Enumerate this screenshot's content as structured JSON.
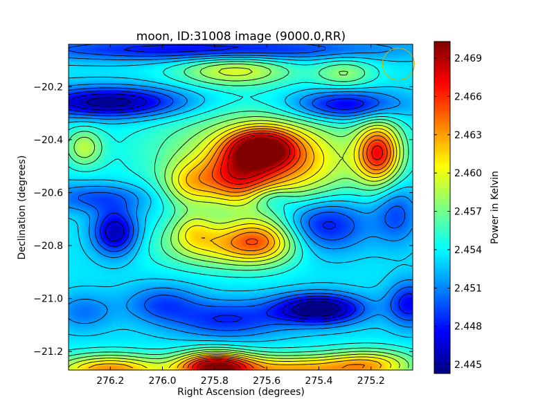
{
  "chart_data": {
    "type": "heatmap",
    "title": "moon, ID:31008 image (9000.0,RR)",
    "xlabel": "Right Ascension (degrees)",
    "ylabel": "Declination (degrees)",
    "xlim": [
      276.36,
      275.04
    ],
    "ylim": [
      -21.27,
      -20.04
    ],
    "x_ticks": [
      276.2,
      276.0,
      275.8,
      275.6,
      275.4,
      275.2
    ],
    "x_tick_labels": [
      "276.2",
      "276.0",
      "275.8",
      "275.6",
      "275.4",
      "275.2"
    ],
    "y_ticks": [
      -20.2,
      -20.4,
      -20.6,
      -20.8,
      -21.0,
      -21.2
    ],
    "y_tick_labels": [
      "−20.2",
      "−20.4",
      "−20.6",
      "−20.8",
      "−21.0",
      "−21.2"
    ],
    "colorbar": {
      "label": "Power in Kelvin",
      "range": [
        2.4443,
        2.4703
      ],
      "ticks": [
        2.445,
        2.448,
        2.451,
        2.454,
        2.457,
        2.46,
        2.463,
        2.466,
        2.469
      ],
      "tick_labels": [
        "2.445",
        "2.448",
        "2.451",
        "2.454",
        "2.457",
        "2.460",
        "2.463",
        "2.466",
        "2.469"
      ],
      "colormap": "jet"
    },
    "field": {
      "base": 2.4535,
      "features": [
        {
          "ra": 275.62,
          "dec": -20.43,
          "amp": 0.011,
          "s_ra": 0.09,
          "s_dec": 0.05
        },
        {
          "ra": 275.55,
          "dec": -20.5,
          "amp": 0.006,
          "s_ra": 0.18,
          "s_dec": 0.1
        },
        {
          "ra": 275.72,
          "dec": -20.55,
          "amp": 0.007,
          "s_ra": 0.09,
          "s_dec": 0.07
        },
        {
          "ra": 275.65,
          "dec": -20.45,
          "amp": 0.005,
          "s_ra": 0.28,
          "s_dec": 0.12
        },
        {
          "ra": 275.17,
          "dec": -20.45,
          "amp": 0.012,
          "s_ra": 0.06,
          "s_dec": 0.08
        },
        {
          "ra": 275.9,
          "dec": -20.57,
          "amp": 0.005,
          "s_ra": 0.07,
          "s_dec": 0.06
        },
        {
          "ra": 275.62,
          "dec": -20.78,
          "amp": 0.008,
          "s_ra": 0.1,
          "s_dec": 0.06
        },
        {
          "ra": 275.78,
          "dec": -20.8,
          "amp": 0.006,
          "s_ra": 0.16,
          "s_dec": 0.06
        },
        {
          "ra": 275.88,
          "dec": -20.74,
          "amp": 0.004,
          "s_ra": 0.06,
          "s_dec": 0.05
        },
        {
          "ra": 275.72,
          "dec": -20.14,
          "amp": 0.006,
          "s_ra": 0.15,
          "s_dec": 0.04
        },
        {
          "ra": 275.3,
          "dec": -20.15,
          "amp": 0.004,
          "s_ra": 0.08,
          "s_dec": 0.04
        },
        {
          "ra": 276.3,
          "dec": -20.43,
          "amp": 0.005,
          "s_ra": 0.05,
          "s_dec": 0.05
        },
        {
          "ra": 275.8,
          "dec": -21.26,
          "amp": 0.015,
          "s_ra": 0.1,
          "s_dec": 0.04
        },
        {
          "ra": 276.2,
          "dec": -21.27,
          "amp": 0.01,
          "s_ra": 0.15,
          "s_dec": 0.04
        },
        {
          "ra": 275.5,
          "dec": -21.27,
          "amp": 0.009,
          "s_ra": 0.2,
          "s_dec": 0.04
        },
        {
          "ra": 275.2,
          "dec": -21.25,
          "amp": 0.007,
          "s_ra": 0.12,
          "s_dec": 0.04
        },
        {
          "ra": 276.2,
          "dec": -20.26,
          "amp": -0.009,
          "s_ra": 0.2,
          "s_dec": 0.04
        },
        {
          "ra": 275.3,
          "dec": -20.27,
          "amp": -0.007,
          "s_ra": 0.15,
          "s_dec": 0.04
        },
        {
          "ra": 275.85,
          "dec": -20.06,
          "amp": -0.006,
          "s_ra": 0.5,
          "s_dec": 0.03
        },
        {
          "ra": 276.25,
          "dec": -20.62,
          "amp": -0.004,
          "s_ra": 0.15,
          "s_dec": 0.04
        },
        {
          "ra": 276.18,
          "dec": -20.75,
          "amp": -0.008,
          "s_ra": 0.06,
          "s_dec": 0.06
        },
        {
          "ra": 275.38,
          "dec": -20.72,
          "amp": -0.006,
          "s_ra": 0.12,
          "s_dec": 0.07
        },
        {
          "ra": 275.4,
          "dec": -21.04,
          "amp": -0.01,
          "s_ra": 0.12,
          "s_dec": 0.04
        },
        {
          "ra": 275.05,
          "dec": -21.02,
          "amp": -0.006,
          "s_ra": 0.06,
          "s_dec": 0.06
        },
        {
          "ra": 275.75,
          "dec": -21.08,
          "amp": -0.005,
          "s_ra": 0.15,
          "s_dec": 0.05
        },
        {
          "ra": 276.0,
          "dec": -21.02,
          "amp": -0.004,
          "s_ra": 0.1,
          "s_dec": 0.05
        },
        {
          "ra": 276.3,
          "dec": -21.05,
          "amp": -0.003,
          "s_ra": 0.08,
          "s_dec": 0.05
        },
        {
          "ra": 275.58,
          "dec": -20.62,
          "amp": -0.003,
          "s_ra": 0.06,
          "s_dec": 0.03
        },
        {
          "ra": 275.1,
          "dec": -20.68,
          "amp": -0.004,
          "s_ra": 0.06,
          "s_dec": 0.08
        }
      ]
    },
    "beam": {
      "ra": 275.095,
      "dec": -20.115,
      "r_dec": 0.06,
      "color": "#c8b400"
    },
    "grid": false,
    "legend": "none"
  }
}
